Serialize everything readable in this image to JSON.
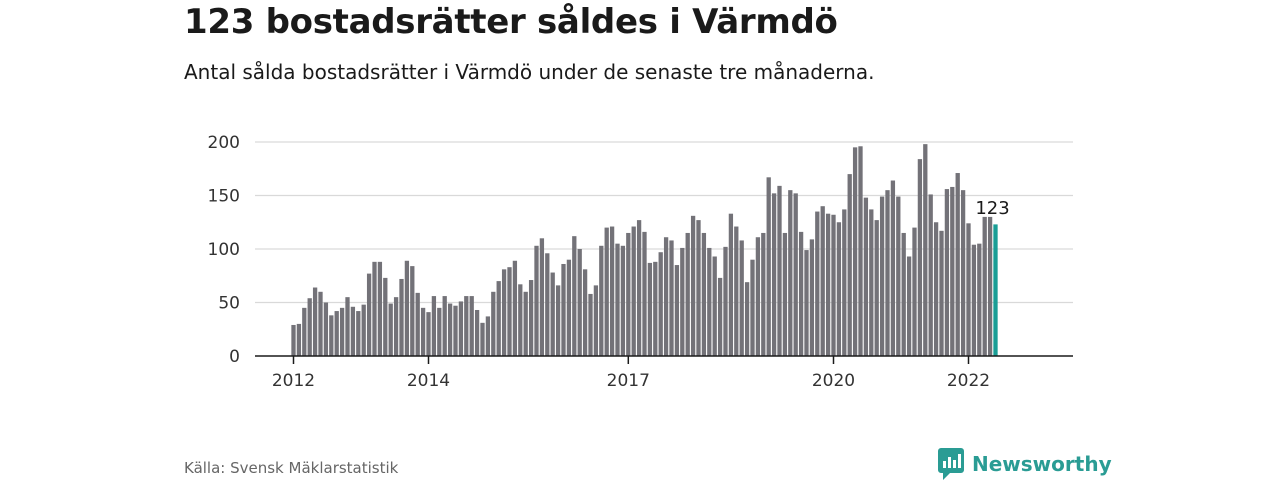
{
  "header": {
    "title": "123 bostadsrätter såldes i Värmdö",
    "subtitle": "Antal sålda bostadsrätter i Värmdö under de senaste tre månaderna."
  },
  "footer": {
    "source": "Källa: Svensk Mäklarstatistik",
    "brand": "Newsworthy",
    "brand_icon": "newsworthy-logo-icon"
  },
  "colors": {
    "bar": "#737278",
    "highlight": "#1a9e96",
    "grid": "#d9d9d9",
    "axis": "#1a1a1a",
    "brand": "#2a9c94"
  },
  "chart_data": {
    "type": "bar",
    "ylim": [
      0,
      200
    ],
    "y_ticks": [
      0,
      50,
      100,
      150,
      200
    ],
    "x_tick_labels": [
      {
        "label": "2012",
        "index": 0
      },
      {
        "label": "2014",
        "index": 25
      },
      {
        "label": "2017",
        "index": 62
      },
      {
        "label": "2020",
        "index": 100
      },
      {
        "label": "2022",
        "index": 125
      }
    ],
    "grid": true,
    "highlight_label": "123",
    "values": [
      29,
      30,
      45,
      54,
      64,
      60,
      50,
      38,
      42,
      45,
      55,
      46,
      42,
      48,
      77,
      88,
      88,
      73,
      49,
      55,
      72,
      89,
      84,
      59,
      45,
      41,
      56,
      45,
      56,
      49,
      47,
      51,
      56,
      56,
      43,
      31,
      37,
      60,
      70,
      81,
      83,
      89,
      67,
      60,
      71,
      103,
      110,
      96,
      78,
      66,
      86,
      90,
      112,
      100,
      81,
      58,
      66,
      103,
      120,
      121,
      105,
      103,
      115,
      121,
      127,
      116,
      87,
      88,
      97,
      111,
      108,
      85,
      101,
      115,
      131,
      127,
      115,
      101,
      93,
      73,
      102,
      133,
      121,
      108,
      69,
      90,
      111,
      115,
      167,
      152,
      159,
      115,
      155,
      152,
      116,
      99,
      109,
      135,
      140,
      133,
      132,
      125,
      137,
      170,
      195,
      196,
      148,
      137,
      127,
      149,
      155,
      164,
      149,
      115,
      93,
      120,
      184,
      198,
      151,
      125,
      117,
      156,
      158,
      171,
      155,
      124,
      104,
      105,
      130,
      130,
      123
    ]
  }
}
